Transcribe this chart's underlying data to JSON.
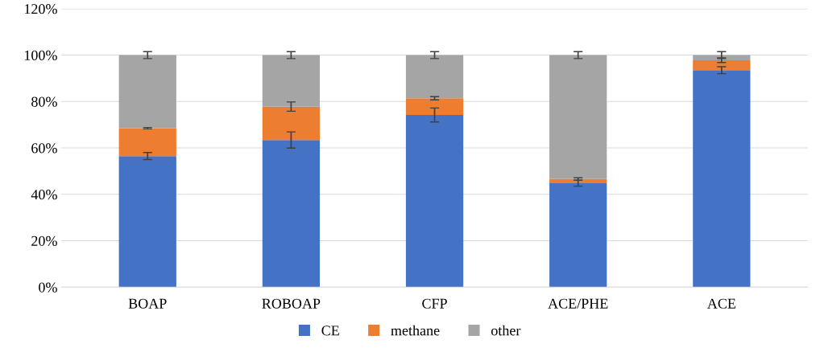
{
  "chart_data": {
    "type": "bar",
    "stacked": true,
    "categories": [
      "BOAP",
      "ROBOAP",
      "CFP",
      "ACE/PHE",
      "ACE"
    ],
    "series": [
      {
        "name": "CE",
        "color": "#4472c4",
        "values": [
          56.5,
          63.4,
          74.2,
          44.8,
          93.5
        ],
        "errors": [
          1.5,
          3.5,
          3,
          1.3,
          1.5
        ]
      },
      {
        "name": "methane",
        "color": "#ed7d31",
        "values": [
          12,
          14.4,
          7.2,
          1.8,
          4.3
        ],
        "errors": [
          0.3,
          2,
          0.7,
          0.5,
          1
        ]
      },
      {
        "name": "other",
        "color": "#a5a5a5",
        "values": [
          31.5,
          22.2,
          18.6,
          53.4,
          2.2
        ],
        "errors": [
          1.5,
          1.5,
          1.5,
          1.5,
          1.5
        ]
      }
    ],
    "ylim": [
      0,
      120
    ],
    "yticks": [
      {
        "value": 0,
        "label": "0%"
      },
      {
        "value": 20,
        "label": "20%"
      },
      {
        "value": 40,
        "label": "40%"
      },
      {
        "value": 60,
        "label": "60%"
      },
      {
        "value": 80,
        "label": "80%"
      },
      {
        "value": 100,
        "label": "100%"
      },
      {
        "value": 120,
        "label": "120%"
      }
    ],
    "grid": "y",
    "legend": "bottom"
  }
}
